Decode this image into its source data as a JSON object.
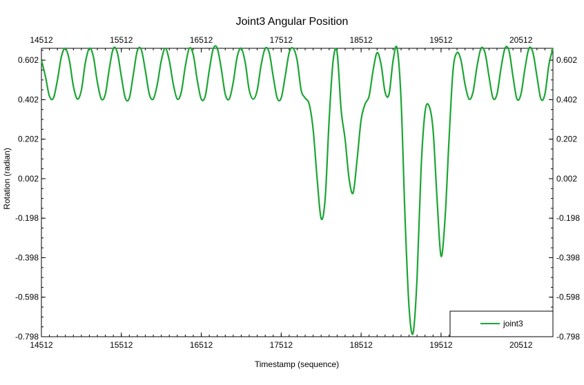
{
  "chart_data": {
    "type": "line",
    "title": "Joint3 Angular Position",
    "xlabel": "Timestamp (sequence)",
    "ylabel": "Rotation (radian)",
    "xlim": [
      14512,
      20912
    ],
    "ylim": [
      -0.798,
      0.662
    ],
    "x_ticks": [
      14512,
      15512,
      16512,
      17512,
      18512,
      19512,
      20512
    ],
    "x_tick_labels": [
      "14512",
      "15512",
      "16512",
      "17512",
      "18512",
      "19512",
      "20512"
    ],
    "y_ticks": [
      -0.798,
      -0.598,
      -0.398,
      -0.198,
      0.002,
      0.202,
      0.402,
      0.602
    ],
    "y_tick_labels": [
      "-0.798",
      "-0.598",
      "-0.398",
      "-0.198",
      "0.002",
      "0.202",
      "0.402",
      "0.602"
    ],
    "x_axis_top_mirrored": true,
    "y_axis_right_mirrored": true,
    "grid": false,
    "legend_position": "bottom-right",
    "series": [
      {
        "name": "joint3",
        "color": "#1aa532",
        "x": [
          14512,
          14562,
          14612,
          14662,
          14712,
          14762,
          14812,
          14862,
          14912,
          14962,
          15012,
          15062,
          15112,
          15162,
          15212,
          15262,
          15312,
          15362,
          15412,
          15462,
          15512,
          15562,
          15612,
          15662,
          15712,
          15762,
          15812,
          15862,
          15912,
          15962,
          16012,
          16062,
          16112,
          16162,
          16212,
          16262,
          16312,
          16362,
          16412,
          16462,
          16512,
          16562,
          16612,
          16662,
          16712,
          16762,
          16812,
          16862,
          16912,
          16962,
          17012,
          17062,
          17112,
          17162,
          17212,
          17262,
          17312,
          17362,
          17412,
          17462,
          17512,
          17562,
          17612,
          17662,
          17712,
          17762,
          17812,
          17862,
          17912,
          17962,
          18012,
          18062,
          18112,
          18162,
          18212,
          18262,
          18312,
          18362,
          18412,
          18462,
          18512,
          18562,
          18612,
          18662,
          18712,
          18762,
          18812,
          18862,
          18912,
          18962,
          19012,
          19062,
          19112,
          19162,
          19212,
          19262,
          19312,
          19362,
          19412,
          19462,
          19512,
          19562,
          19612,
          19662,
          19712,
          19762,
          19812,
          19862,
          19912,
          19962,
          20012,
          20062,
          20112,
          20162,
          20212,
          20262,
          20312,
          20362,
          20412,
          20462,
          20512,
          20562,
          20612,
          20662,
          20712,
          20762,
          20812,
          20862,
          20912
        ],
        "y": [
          0.602,
          0.52,
          0.42,
          0.41,
          0.5,
          0.62,
          0.662,
          0.6,
          0.47,
          0.405,
          0.45,
          0.59,
          0.662,
          0.62,
          0.49,
          0.405,
          0.43,
          0.56,
          0.662,
          0.64,
          0.52,
          0.41,
          0.41,
          0.53,
          0.65,
          0.655,
          0.55,
          0.43,
          0.405,
          0.48,
          0.6,
          0.662,
          0.6,
          0.48,
          0.405,
          0.44,
          0.57,
          0.662,
          0.63,
          0.5,
          0.405,
          0.42,
          0.55,
          0.66,
          0.662,
          0.56,
          0.43,
          0.405,
          0.49,
          0.62,
          0.662,
          0.59,
          0.45,
          0.405,
          0.45,
          0.58,
          0.662,
          0.64,
          0.52,
          0.41,
          0.41,
          0.52,
          0.64,
          0.662,
          0.6,
          0.45,
          0.41,
          0.38,
          0.25,
          0.0,
          -0.2,
          -0.1,
          0.3,
          0.6,
          0.64,
          0.35,
          0.2,
          0.0,
          -0.07,
          0.1,
          0.3,
          0.38,
          0.42,
          0.55,
          0.64,
          0.58,
          0.44,
          0.43,
          0.6,
          0.662,
          0.4,
          -0.2,
          -0.65,
          -0.78,
          -0.5,
          0.05,
          0.34,
          0.37,
          0.25,
          -0.1,
          -0.39,
          -0.2,
          0.2,
          0.55,
          0.64,
          0.6,
          0.48,
          0.405,
          0.44,
          0.57,
          0.662,
          0.64,
          0.52,
          0.41,
          0.43,
          0.56,
          0.662,
          0.65,
          0.52,
          0.405,
          0.43,
          0.56,
          0.662,
          0.64,
          0.52,
          0.405,
          0.43,
          0.58,
          0.662
        ]
      }
    ]
  }
}
